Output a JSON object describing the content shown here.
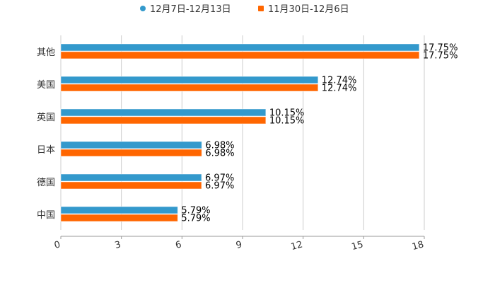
{
  "chart_data": {
    "type": "bar",
    "orientation": "horizontal",
    "title": "",
    "xlabel": "",
    "ylabel": "",
    "xlim": [
      0,
      18
    ],
    "x_ticks": [
      0,
      3,
      6,
      9,
      12,
      15,
      18
    ],
    "grid": true,
    "legend_position": "top-center",
    "categories": [
      "其他",
      "美国",
      "英国",
      "日本",
      "德国",
      "中国"
    ],
    "series": [
      {
        "name": "12月7日-12月13日",
        "color": "#3399cc",
        "values": [
          17.75,
          12.74,
          10.15,
          6.98,
          6.97,
          5.79
        ]
      },
      {
        "name": "11月30日-12月6日",
        "color": "#ff6600",
        "values": [
          17.75,
          12.74,
          10.15,
          6.98,
          6.97,
          5.79
        ]
      }
    ],
    "value_suffix": "%"
  }
}
